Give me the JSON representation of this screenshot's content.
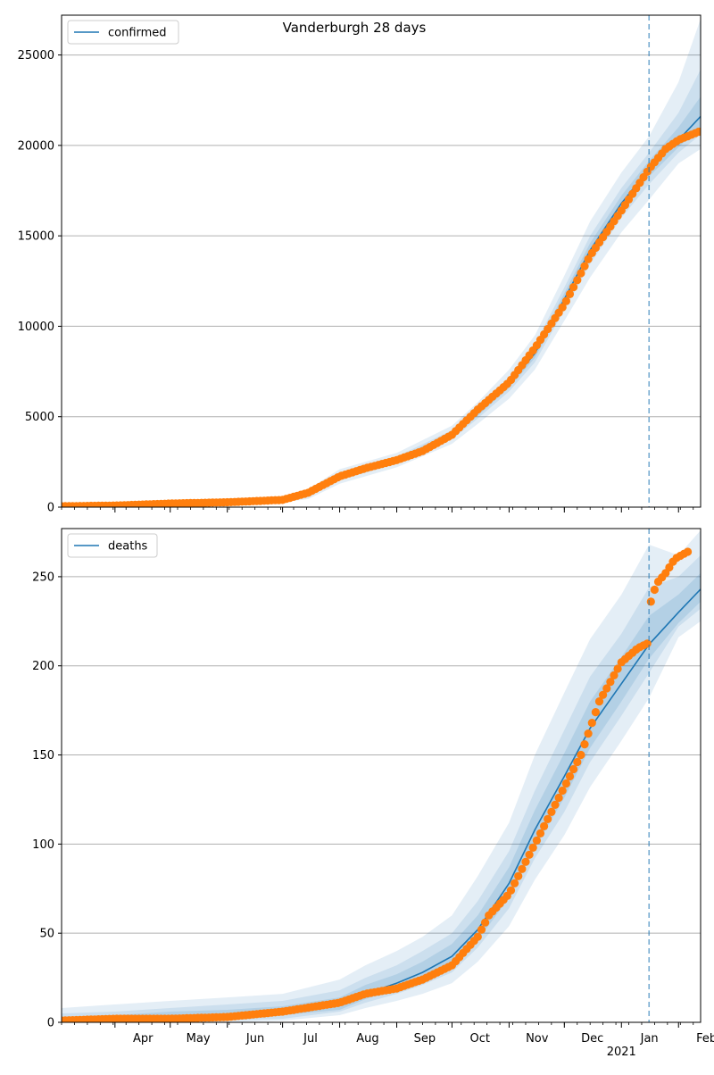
{
  "figure": {
    "title": "Vanderburgh 28 days"
  },
  "chart_data": [
    {
      "type": "line",
      "legend": {
        "label": "confirmed",
        "placement": "top-left"
      },
      "ylim": [
        0,
        27200
      ],
      "yticks": [
        0,
        5000,
        10000,
        15000,
        20000,
        25000
      ],
      "grid": "y",
      "forecast_start": "2021-01-16",
      "colors": {
        "model": "#1f77b4",
        "observed": "#ff7f0e",
        "band": "#1f77b4",
        "divider": "#1f77b4"
      },
      "model_x": [
        "2020-03-03",
        "2020-04-01",
        "2020-05-01",
        "2020-06-01",
        "2020-07-01",
        "2020-07-15",
        "2020-08-01",
        "2020-09-01",
        "2020-10-01",
        "2020-10-15",
        "2020-11-01",
        "2020-11-15",
        "2020-12-01",
        "2020-12-15",
        "2021-01-01",
        "2021-01-16",
        "2021-02-01",
        "2021-02-13"
      ],
      "model_y": [
        50,
        100,
        200,
        250,
        400,
        700,
        1700,
        2600,
        4000,
        5200,
        6800,
        8500,
        11500,
        14200,
        16800,
        18700,
        20300,
        21600
      ],
      "band_outer_upper": [
        80,
        140,
        260,
        340,
        560,
        1000,
        2100,
        3000,
        4500,
        5800,
        7600,
        9500,
        12800,
        15800,
        18500,
        20500,
        23500,
        27000
      ],
      "band_outer_lower": [
        20,
        60,
        140,
        180,
        260,
        450,
        1300,
        2200,
        3500,
        4600,
        6000,
        7600,
        10300,
        12700,
        15200,
        17000,
        19000,
        19800
      ],
      "band_mid_upper": [
        65,
        120,
        230,
        300,
        480,
        850,
        1900,
        2800,
        4250,
        5500,
        7200,
        9000,
        12150,
        15000,
        17650,
        19600,
        21800,
        24200
      ],
      "band_mid_lower": [
        35,
        80,
        170,
        210,
        320,
        560,
        1500,
        2400,
        3750,
        4900,
        6400,
        8000,
        10900,
        13450,
        16000,
        17850,
        19600,
        20600
      ],
      "band_inner_upper": [
        58,
        110,
        215,
        275,
        440,
        775,
        1800,
        2700,
        4125,
        5350,
        7000,
        8750,
        11825,
        14600,
        17225,
        19150,
        21000,
        22700
      ],
      "band_inner_lower": [
        42,
        90,
        185,
        225,
        360,
        625,
        1600,
        2500,
        3875,
        5050,
        6600,
        8250,
        11175,
        13800,
        16375,
        18275,
        19900,
        21000
      ],
      "observed_x": [
        "2020-03-03",
        "2020-04-01",
        "2020-05-01",
        "2020-06-01",
        "2020-07-01",
        "2020-07-15",
        "2020-08-01",
        "2020-08-15",
        "2020-09-01",
        "2020-09-15",
        "2020-10-01",
        "2020-10-15",
        "2020-11-01",
        "2020-11-15",
        "2020-12-01",
        "2020-12-15",
        "2021-01-01",
        "2021-01-16",
        "2021-01-25",
        "2021-02-01",
        "2021-02-13"
      ],
      "observed_y": [
        50,
        90,
        200,
        270,
        400,
        800,
        1700,
        2150,
        2600,
        3100,
        4000,
        5400,
        6900,
        8800,
        11200,
        13900,
        16400,
        18700,
        19800,
        20300,
        20800
      ]
    },
    {
      "type": "line",
      "legend": {
        "label": "deaths",
        "placement": "top-left"
      },
      "ylim": [
        0,
        277
      ],
      "yticks": [
        0,
        50,
        100,
        150,
        200,
        250
      ],
      "grid": "y",
      "forecast_start": "2021-01-16",
      "x_ticklabels": [
        "Apr",
        "May",
        "Jun",
        "Jul",
        "Aug",
        "Sep",
        "Oct",
        "Nov",
        "Dec",
        "Jan",
        "Feb"
      ],
      "x_tick_dates": [
        "2020-04-01",
        "2020-05-01",
        "2020-06-01",
        "2020-07-01",
        "2020-08-01",
        "2020-09-01",
        "2020-10-01",
        "2020-11-01",
        "2020-12-01",
        "2021-01-01",
        "2021-02-01"
      ],
      "x_year_label": "2021",
      "colors": {
        "model": "#1f77b4",
        "observed": "#ff7f0e",
        "band": "#1f77b4",
        "divider": "#1f77b4"
      },
      "model_x": [
        "2020-03-03",
        "2020-04-01",
        "2020-05-01",
        "2020-06-01",
        "2020-07-01",
        "2020-08-01",
        "2020-08-15",
        "2020-09-01",
        "2020-09-15",
        "2020-10-01",
        "2020-10-15",
        "2020-11-01",
        "2020-11-15",
        "2020-12-01",
        "2020-12-15",
        "2021-01-01",
        "2021-01-16",
        "2021-02-01",
        "2021-02-13"
      ],
      "model_y": [
        1,
        2,
        3,
        4,
        6,
        10,
        16,
        22,
        28,
        37,
        52,
        78,
        108,
        138,
        165,
        190,
        212,
        230,
        243
      ],
      "band_outer_upper": [
        8,
        10,
        12,
        14,
        16,
        24,
        32,
        40,
        48,
        60,
        82,
        112,
        150,
        185,
        215,
        240,
        268,
        262,
        276
      ],
      "band_outer_lower": [
        0,
        0,
        0,
        0,
        1,
        4,
        8,
        12,
        16,
        22,
        34,
        54,
        80,
        105,
        132,
        158,
        182,
        216,
        225
      ],
      "band_mid_upper": [
        5,
        6,
        8,
        10,
        12,
        18,
        25,
        32,
        40,
        50,
        68,
        96,
        130,
        164,
        194,
        218,
        244,
        250,
        262
      ],
      "band_mid_lower": [
        0,
        0,
        0,
        1,
        2,
        6,
        11,
        16,
        21,
        28,
        42,
        64,
        92,
        118,
        146,
        172,
        196,
        222,
        232
      ],
      "band_inner_upper": [
        3,
        4,
        6,
        7,
        9,
        14,
        21,
        27,
        34,
        44,
        60,
        87,
        119,
        151,
        180,
        205,
        228,
        240,
        252
      ],
      "band_inner_lower": [
        0,
        1,
        1,
        2,
        4,
        7,
        13,
        19,
        24,
        32,
        46,
        70,
        98,
        126,
        154,
        180,
        204,
        224,
        236
      ],
      "observed_x": [
        "2020-03-03",
        "2020-04-01",
        "2020-05-01",
        "2020-06-01",
        "2020-07-01",
        "2020-08-01",
        "2020-08-15",
        "2020-09-01",
        "2020-09-15",
        "2020-10-01",
        "2020-10-15",
        "2020-10-21",
        "2020-11-01",
        "2020-11-15",
        "2020-12-01",
        "2020-12-10",
        "2020-12-20",
        "2021-01-01",
        "2021-01-10",
        "2021-01-16",
        "2021-01-17",
        "2021-01-20",
        "2021-01-25",
        "2021-01-30",
        "2021-02-06"
      ],
      "observed_y": [
        1,
        2,
        2,
        3,
        6,
        11,
        16,
        19,
        24,
        32,
        48,
        60,
        72,
        100,
        132,
        150,
        180,
        202,
        210,
        213,
        236,
        246,
        252,
        260,
        264
      ]
    }
  ]
}
